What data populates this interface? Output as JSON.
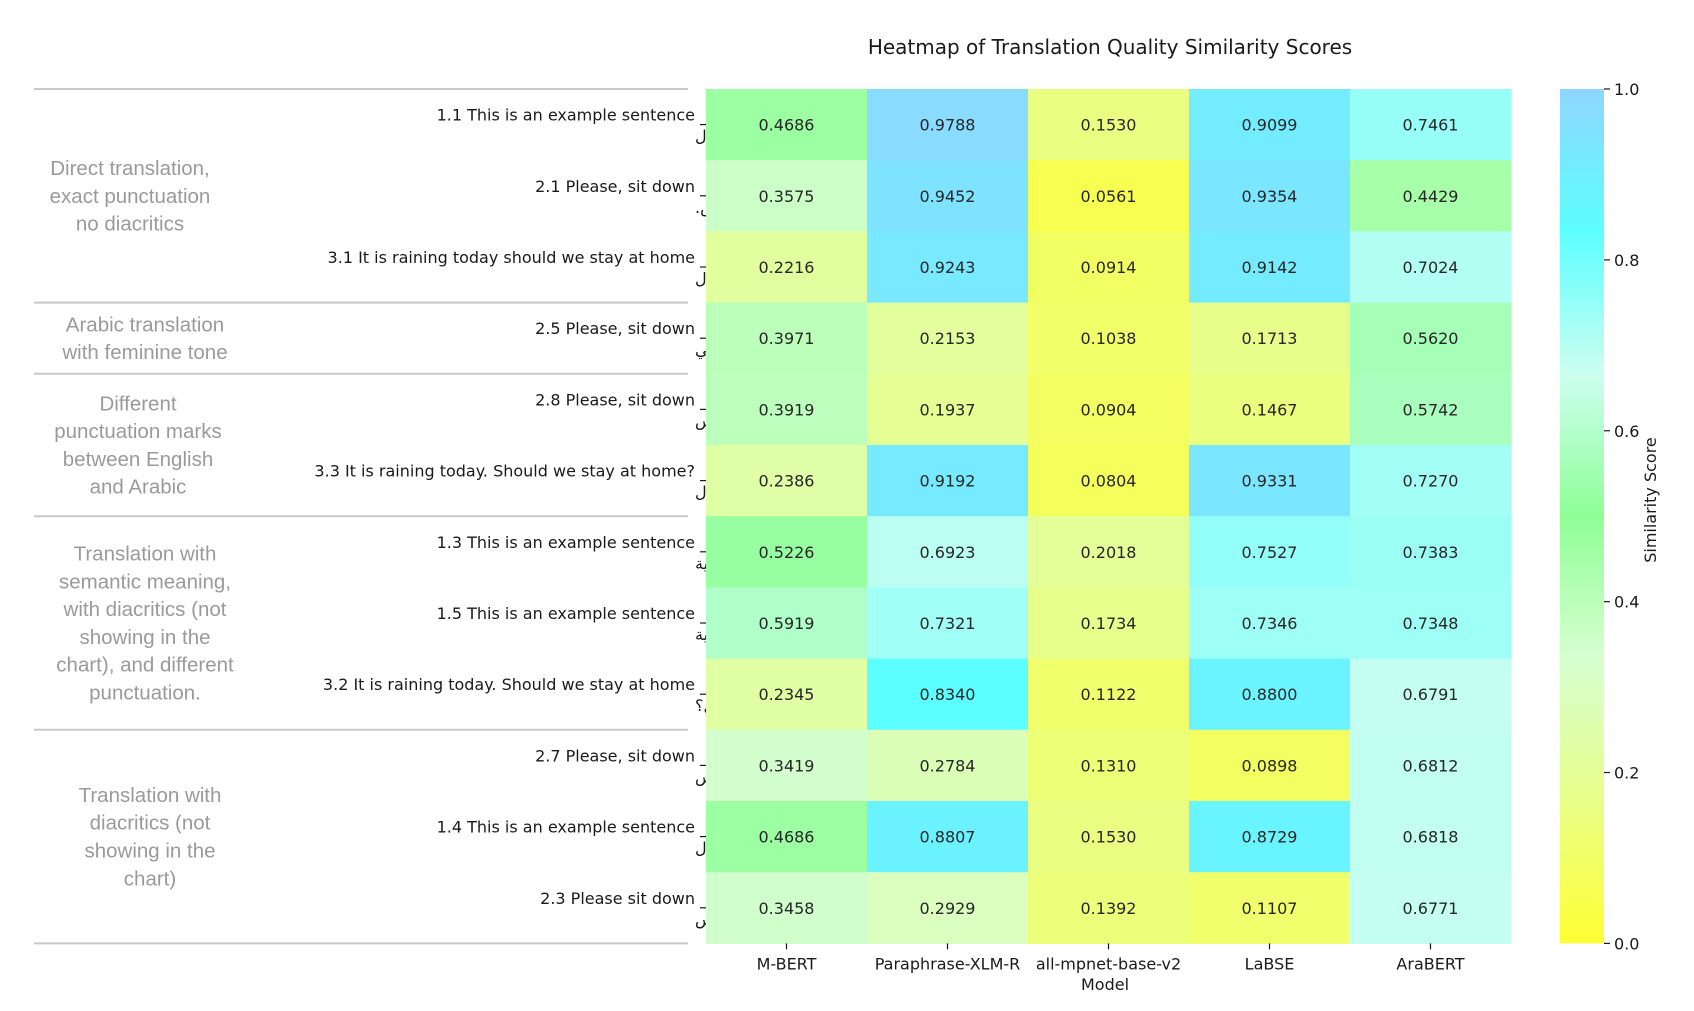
{
  "chart_data": {
    "type": "heatmap",
    "title": "Heatmap of Translation Quality Similarity Scores",
    "xlabel": "Model",
    "colorbar_label": "Similarity Score",
    "colorbar_range": [
      0.0,
      1.0
    ],
    "colorbar_ticks": [
      "0.0",
      "0.2",
      "0.4",
      "0.6",
      "0.8",
      "1.0"
    ],
    "colorscale": [
      "#ffff33",
      "#e8ff88",
      "#d6ffd0",
      "#8fff96",
      "#ccfff0",
      "#5cffff",
      "#8fd6ff"
    ],
    "models": [
      "M-BERT",
      "Paraphrase-XLM-R",
      "all-mpnet-base-v2",
      "LaBSE",
      "AraBERT"
    ],
    "groups": [
      {
        "label": [
          "Direct translation,",
          "exact punctuation",
          "no diacritics"
        ],
        "rows": 3
      },
      {
        "label": [
          "Arabic translation",
          "with feminine tone"
        ],
        "rows": 1
      },
      {
        "label": [
          "Different",
          "punctuation marks",
          "between English",
          "and Arabic"
        ],
        "rows": 2
      },
      {
        "label": [
          "Translation with",
          "semantic meaning,",
          "with diacritics (not",
          "showing in the",
          "chart), and different",
          "punctuation."
        ],
        "rows": 3
      },
      {
        "label": [
          "Translation with",
          "diacritics (not",
          "showing in the",
          "chart)"
        ],
        "rows": 3
      }
    ],
    "rows": [
      {
        "en": "1.1 This is an example sentence",
        "ar": "هذه جملة مثال",
        "values": [
          0.4686,
          0.9788,
          0.153,
          0.9099,
          0.7461
        ]
      },
      {
        "en": "2.1 Please, sit down",
        "ar": "تفضل، اجلس.",
        "values": [
          0.3575,
          0.9452,
          0.0561,
          0.9354,
          0.4429
        ]
      },
      {
        "en": "3.1 It is raining today should we stay at home",
        "ar": "إنها تمطر اليوم هل يجب علينا البقاء في المنزل",
        "values": [
          0.2216,
          0.9243,
          0.0914,
          0.9142,
          0.7024
        ]
      },
      {
        "en": "2.5 Please, sit down",
        "ar": "تفضل اجلسي",
        "values": [
          0.3971,
          0.2153,
          0.1038,
          0.1713,
          0.562
        ]
      },
      {
        "en": "2.8 Please, sit down",
        "ar": "تفضل اجلس",
        "values": [
          0.3919,
          0.1937,
          0.0904,
          0.1467,
          0.5742
        ]
      },
      {
        "en": "3.3 It is raining today. Should we stay at home?",
        "ar": "إنها تمطر اليوم. هل يجب علينا البقاء في المنزل",
        "values": [
          0.2386,
          0.9192,
          0.0804,
          0.9331,
          0.727
        ]
      },
      {
        "en": "1.3 This is an example sentence",
        "ar": "هذه عبارة توضيحية",
        "values": [
          0.5226,
          0.6923,
          0.2018,
          0.7527,
          0.7383
        ]
      },
      {
        "en": "1.5 This is an example sentence",
        "ar": "هذه عبارة توضيحية",
        "values": [
          0.5919,
          0.7321,
          0.1734,
          0.7346,
          0.7348
        ]
      },
      {
        "en": "3.2 It is raining today. Should we stay at home",
        "ar": "إنه يوم ممطر هل يجب علينا البقاء في المنزل؟",
        "values": [
          0.2345,
          0.834,
          0.1122,
          0.88,
          0.6791
        ]
      },
      {
        "en": "2.7 Please, sit down",
        "ar": "من فضلك اجلس",
        "values": [
          0.3419,
          0.2784,
          0.131,
          0.0898,
          0.6812
        ]
      },
      {
        "en": "1.4 This is an example sentence",
        "ar": "هذه جملة مثال",
        "values": [
          0.4686,
          0.8807,
          0.153,
          0.8729,
          0.6818
        ]
      },
      {
        "en": "2.3 Please sit down",
        "ar": "من فضلك اجلس",
        "values": [
          0.3458,
          0.2929,
          0.1392,
          0.1107,
          0.6771
        ]
      }
    ]
  }
}
